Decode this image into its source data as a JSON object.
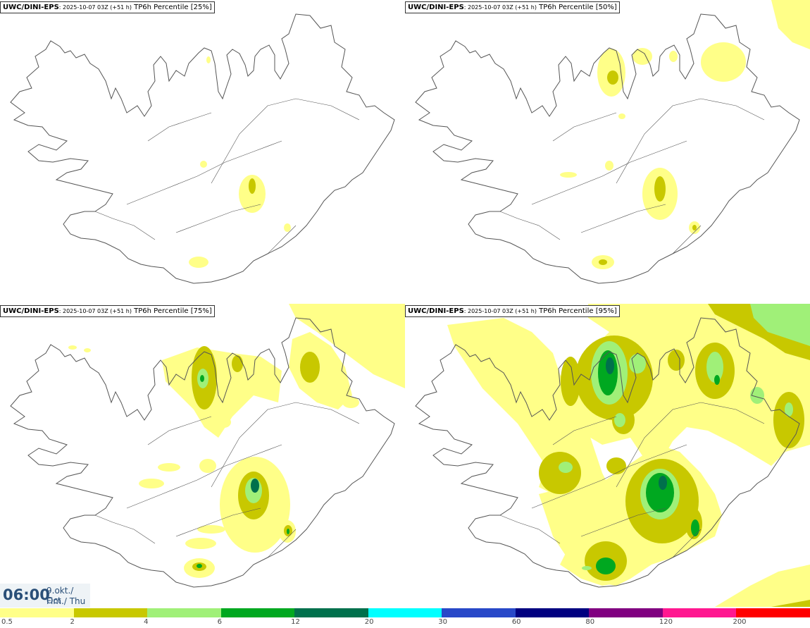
{
  "panels": [
    {
      "model": "UWC/DINI-EPS",
      "run": ": 2025-10-07 03Z (+51 h)",
      "param": " TP6h Percentile [25%]"
    },
    {
      "model": "UWC/DINI-EPS",
      "run": ": 2025-10-07 03Z (+51 h)",
      "param": " TP6h Percentile [50%]"
    },
    {
      "model": "UWC/DINI-EPS",
      "run": ": 2025-10-07 03Z (+51 h)",
      "param": " TP6h Percentile [75%]"
    },
    {
      "model": "UWC/DINI-EPS",
      "run": ": 2025-10-07 03Z (+51 h)",
      "param": " TP6h Percentile [95%]"
    }
  ],
  "valid_time": {
    "time": "06:00",
    "date": "9.okt./ Oct",
    "weekday": "Fim./ Thu"
  },
  "legend": {
    "labels": [
      "0.5",
      "2",
      "4",
      "6",
      "12",
      "20",
      "30",
      "60",
      "80",
      "120",
      "200"
    ],
    "colors": [
      "#ffff88",
      "#c8c800",
      "#a0f078",
      "#00a820",
      "#00704c",
      "#00ffff",
      "#2848c8",
      "#000080",
      "#800080",
      "#ff1890",
      "#ff0000"
    ]
  },
  "precip_colors": {
    "light": "#ffff88",
    "olive": "#c8c800",
    "lightgreen": "#a0f078",
    "green": "#00a820",
    "darkgreen": "#00704c"
  }
}
